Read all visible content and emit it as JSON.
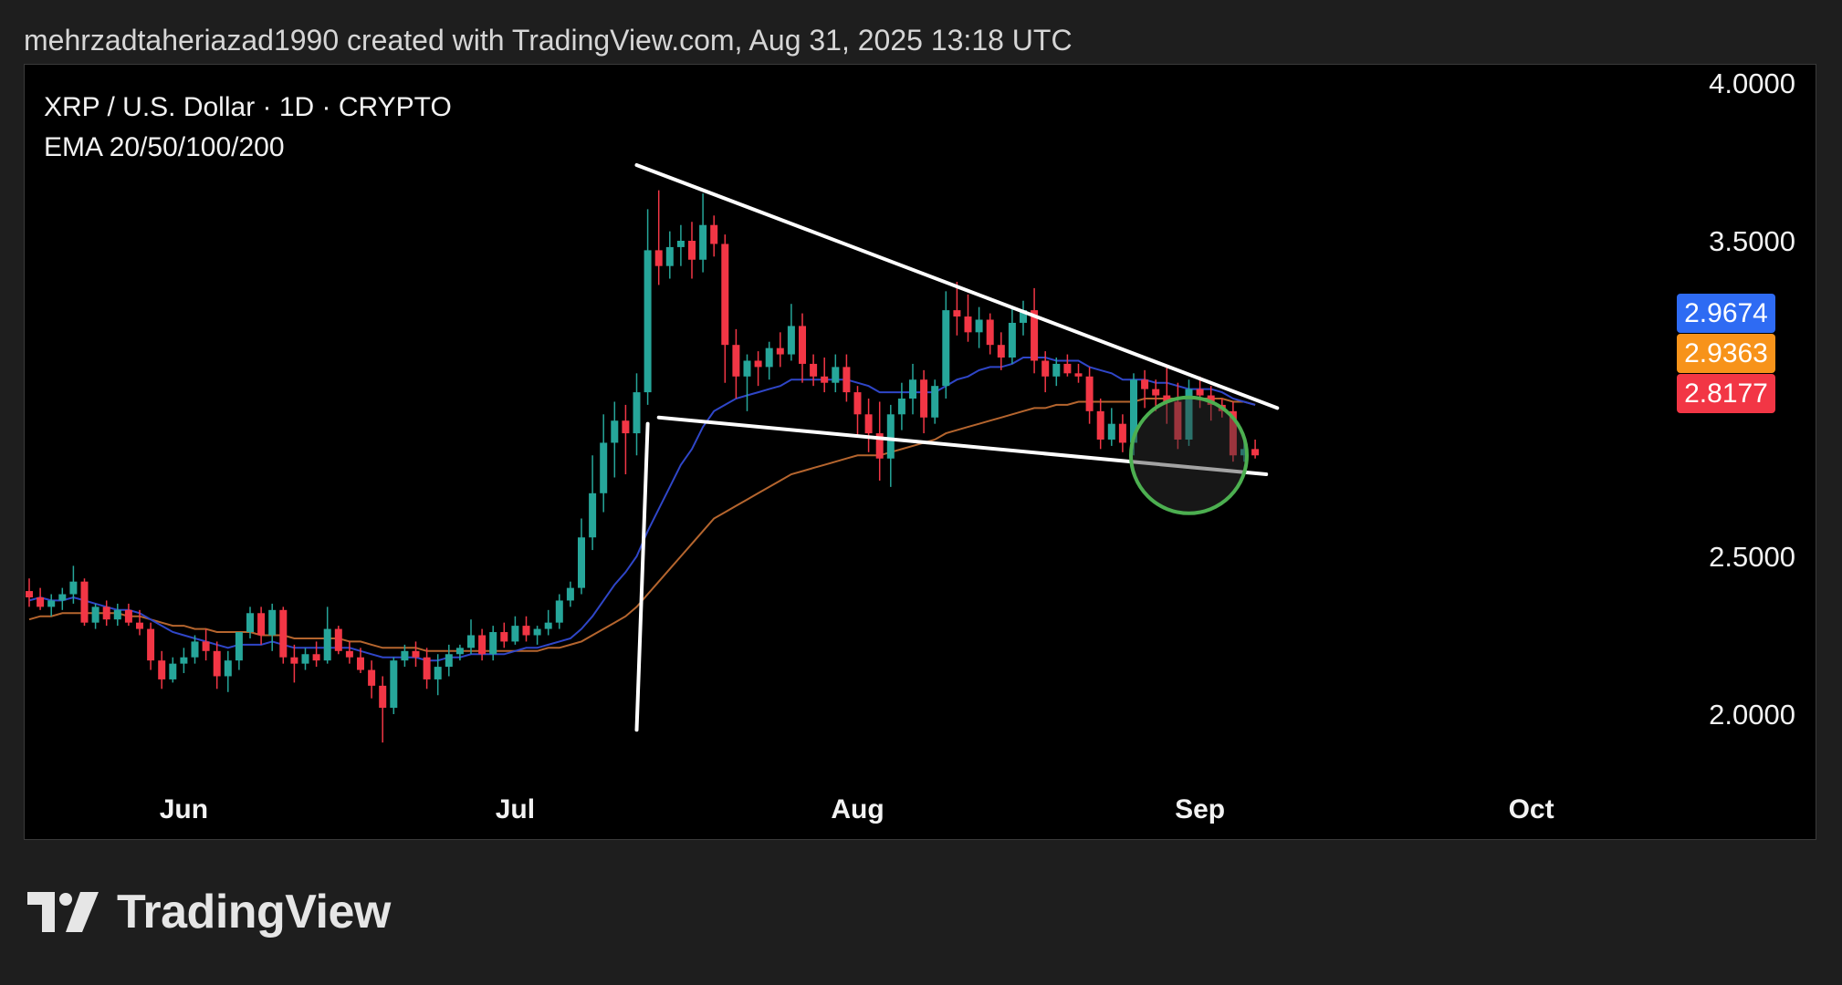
{
  "header": {
    "credit": "mehrzadtaheriazad1990 created with TradingView.com, Aug 31, 2025 13:18 UTC"
  },
  "legend": {
    "symbol": "XRP / U.S. Dollar · 1D · CRYPTO",
    "indicator": "EMA 20/50/100/200"
  },
  "price_badges": [
    {
      "value": "2.9674",
      "color": "#2e6bf3"
    },
    {
      "value": "2.9363",
      "color": "#f7931a"
    },
    {
      "value": "2.8177",
      "color": "#f23645"
    }
  ],
  "footer": {
    "brand": "TradingView"
  },
  "colors": {
    "up": "#26a69a",
    "down": "#f23645",
    "ema20": "#2f46c8",
    "ema50": "#b5652e",
    "drawing": "#ffffff",
    "circle": "#4caf50"
  },
  "chart_data": {
    "type": "candlestick",
    "title": "XRP / U.S. Dollar · 1D · CRYPTO",
    "x_ticks": [
      "Jun",
      "Jul",
      "Aug",
      "Sep",
      "Oct"
    ],
    "y_ticks": [
      "4.0000",
      "3.5000",
      "2.5000",
      "2.0000"
    ],
    "ylim": [
      1.6,
      4.06
    ],
    "grid": false,
    "x_start": "2025-05-18",
    "candles": [
      [
        2.39,
        2.43,
        2.34,
        2.37
      ],
      [
        2.37,
        2.4,
        2.33,
        2.34
      ],
      [
        2.34,
        2.38,
        2.31,
        2.36
      ],
      [
        2.36,
        2.4,
        2.33,
        2.38
      ],
      [
        2.38,
        2.47,
        2.35,
        2.42
      ],
      [
        2.42,
        2.43,
        2.28,
        2.29
      ],
      [
        2.29,
        2.35,
        2.27,
        2.34
      ],
      [
        2.34,
        2.36,
        2.28,
        2.3
      ],
      [
        2.3,
        2.35,
        2.28,
        2.33
      ],
      [
        2.33,
        2.35,
        2.28,
        2.29
      ],
      [
        2.29,
        2.33,
        2.25,
        2.27
      ],
      [
        2.27,
        2.29,
        2.14,
        2.17
      ],
      [
        2.17,
        2.2,
        2.08,
        2.11
      ],
      [
        2.11,
        2.18,
        2.1,
        2.16
      ],
      [
        2.16,
        2.21,
        2.13,
        2.18
      ],
      [
        2.18,
        2.25,
        2.16,
        2.23
      ],
      [
        2.23,
        2.27,
        2.17,
        2.2
      ],
      [
        2.2,
        2.23,
        2.08,
        2.12
      ],
      [
        2.12,
        2.2,
        2.07,
        2.17
      ],
      [
        2.17,
        2.25,
        2.14,
        2.26
      ],
      [
        2.26,
        2.34,
        2.24,
        2.32
      ],
      [
        2.32,
        2.34,
        2.22,
        2.25
      ],
      [
        2.25,
        2.35,
        2.2,
        2.33
      ],
      [
        2.33,
        2.34,
        2.16,
        2.18
      ],
      [
        2.18,
        2.22,
        2.1,
        2.16
      ],
      [
        2.16,
        2.21,
        2.14,
        2.19
      ],
      [
        2.19,
        2.23,
        2.15,
        2.17
      ],
      [
        2.17,
        2.34,
        2.16,
        2.27
      ],
      [
        2.27,
        2.28,
        2.19,
        2.2
      ],
      [
        2.2,
        2.23,
        2.16,
        2.18
      ],
      [
        2.18,
        2.21,
        2.13,
        2.14
      ],
      [
        2.14,
        2.17,
        2.05,
        2.09
      ],
      [
        2.09,
        2.12,
        1.91,
        2.02
      ],
      [
        2.02,
        2.18,
        2.0,
        2.17
      ],
      [
        2.17,
        2.22,
        2.15,
        2.2
      ],
      [
        2.2,
        2.23,
        2.15,
        2.18
      ],
      [
        2.18,
        2.21,
        2.08,
        2.11
      ],
      [
        2.11,
        2.19,
        2.06,
        2.15
      ],
      [
        2.15,
        2.22,
        2.12,
        2.19
      ],
      [
        2.19,
        2.22,
        2.17,
        2.21
      ],
      [
        2.21,
        2.3,
        2.19,
        2.25
      ],
      [
        2.25,
        2.27,
        2.17,
        2.19
      ],
      [
        2.19,
        2.28,
        2.17,
        2.26
      ],
      [
        2.26,
        2.29,
        2.21,
        2.23
      ],
      [
        2.23,
        2.31,
        2.22,
        2.28
      ],
      [
        2.28,
        2.31,
        2.23,
        2.25
      ],
      [
        2.25,
        2.28,
        2.22,
        2.27
      ],
      [
        2.27,
        2.33,
        2.25,
        2.29
      ],
      [
        2.29,
        2.38,
        2.27,
        2.36
      ],
      [
        2.36,
        2.42,
        2.34,
        2.4
      ],
      [
        2.4,
        2.62,
        2.38,
        2.56
      ],
      [
        2.56,
        2.82,
        2.52,
        2.7
      ],
      [
        2.7,
        2.95,
        2.64,
        2.86
      ],
      [
        2.86,
        2.99,
        2.75,
        2.93
      ],
      [
        2.93,
        2.98,
        2.76,
        2.89
      ],
      [
        2.89,
        3.08,
        2.82,
        3.02
      ],
      [
        3.02,
        3.6,
        2.98,
        3.47
      ],
      [
        3.47,
        3.66,
        3.36,
        3.42
      ],
      [
        3.42,
        3.53,
        3.38,
        3.48
      ],
      [
        3.48,
        3.55,
        3.42,
        3.5
      ],
      [
        3.5,
        3.56,
        3.38,
        3.44
      ],
      [
        3.44,
        3.65,
        3.4,
        3.55
      ],
      [
        3.55,
        3.58,
        3.45,
        3.49
      ],
      [
        3.49,
        3.52,
        3.05,
        3.17
      ],
      [
        3.17,
        3.22,
        3.0,
        3.07
      ],
      [
        3.07,
        3.14,
        2.96,
        3.12
      ],
      [
        3.12,
        3.15,
        3.04,
        3.1
      ],
      [
        3.1,
        3.18,
        3.06,
        3.16
      ],
      [
        3.16,
        3.21,
        3.1,
        3.14
      ],
      [
        3.14,
        3.3,
        3.12,
        3.23
      ],
      [
        3.23,
        3.27,
        3.05,
        3.11
      ],
      [
        3.11,
        3.14,
        3.04,
        3.07
      ],
      [
        3.07,
        3.13,
        3.02,
        3.05
      ],
      [
        3.05,
        3.14,
        3.02,
        3.1
      ],
      [
        3.1,
        3.14,
        2.99,
        3.02
      ],
      [
        3.02,
        3.04,
        2.88,
        2.95
      ],
      [
        2.95,
        3.0,
        2.83,
        2.89
      ],
      [
        2.89,
        2.99,
        2.74,
        2.81
      ],
      [
        2.81,
        2.98,
        2.72,
        2.95
      ],
      [
        2.95,
        3.05,
        2.9,
        3.0
      ],
      [
        3.0,
        3.11,
        2.95,
        3.06
      ],
      [
        3.06,
        3.09,
        2.89,
        2.94
      ],
      [
        2.94,
        3.06,
        2.92,
        3.04
      ],
      [
        3.04,
        3.34,
        3.0,
        3.28
      ],
      [
        3.28,
        3.37,
        3.2,
        3.26
      ],
      [
        3.26,
        3.33,
        3.18,
        3.21
      ],
      [
        3.21,
        3.29,
        3.16,
        3.25
      ],
      [
        3.25,
        3.27,
        3.14,
        3.17
      ],
      [
        3.17,
        3.21,
        3.09,
        3.13
      ],
      [
        3.13,
        3.29,
        3.11,
        3.24
      ],
      [
        3.24,
        3.31,
        3.2,
        3.28
      ],
      [
        3.28,
        3.35,
        3.08,
        3.12
      ],
      [
        3.12,
        3.15,
        3.02,
        3.07
      ],
      [
        3.07,
        3.13,
        3.04,
        3.11
      ],
      [
        3.11,
        3.14,
        3.07,
        3.08
      ],
      [
        3.08,
        3.11,
        3.05,
        3.07
      ],
      [
        3.07,
        3.1,
        2.92,
        2.96
      ],
      [
        2.96,
        3.0,
        2.84,
        2.87
      ],
      [
        2.87,
        2.97,
        2.85,
        2.92
      ],
      [
        2.92,
        2.95,
        2.83,
        2.86
      ],
      [
        2.86,
        3.08,
        2.82,
        3.06
      ],
      [
        3.06,
        3.09,
        2.97,
        3.03
      ],
      [
        3.03,
        3.06,
        2.96,
        3.01
      ],
      [
        3.01,
        3.1,
        2.92,
        2.99
      ],
      [
        2.99,
        3.05,
        2.84,
        2.87
      ],
      [
        2.87,
        3.06,
        2.85,
        3.03
      ],
      [
        3.03,
        3.07,
        2.97,
        3.01
      ],
      [
        3.01,
        3.04,
        2.93,
        2.98
      ],
      [
        2.98,
        3.0,
        2.94,
        2.96
      ],
      [
        2.96,
        2.99,
        2.8,
        2.82
      ],
      [
        2.82,
        2.88,
        2.8,
        2.84
      ],
      [
        2.84,
        2.87,
        2.81,
        2.82
      ]
    ],
    "ema20": [
      2.36,
      2.37,
      2.36,
      2.36,
      2.37,
      2.36,
      2.35,
      2.34,
      2.33,
      2.33,
      2.32,
      2.3,
      2.28,
      2.26,
      2.25,
      2.24,
      2.23,
      2.22,
      2.21,
      2.22,
      2.22,
      2.22,
      2.23,
      2.22,
      2.21,
      2.21,
      2.21,
      2.21,
      2.21,
      2.21,
      2.2,
      2.19,
      2.18,
      2.18,
      2.18,
      2.18,
      2.17,
      2.17,
      2.18,
      2.18,
      2.19,
      2.19,
      2.19,
      2.19,
      2.2,
      2.21,
      2.21,
      2.22,
      2.23,
      2.24,
      2.27,
      2.31,
      2.36,
      2.41,
      2.45,
      2.5,
      2.58,
      2.65,
      2.72,
      2.79,
      2.84,
      2.91,
      2.96,
      2.98,
      3.0,
      3.01,
      3.02,
      3.03,
      3.04,
      3.06,
      3.06,
      3.06,
      3.06,
      3.06,
      3.06,
      3.05,
      3.04,
      3.02,
      3.02,
      3.02,
      3.02,
      3.02,
      3.02,
      3.04,
      3.06,
      3.07,
      3.09,
      3.1,
      3.1,
      3.11,
      3.13,
      3.13,
      3.13,
      3.12,
      3.12,
      3.12,
      3.1,
      3.09,
      3.08,
      3.06,
      3.06,
      3.06,
      3.05,
      3.05,
      3.04,
      3.03,
      3.03,
      3.03,
      3.02,
      3.0,
      2.99,
      2.98
    ],
    "ema50": [
      2.3,
      2.31,
      2.31,
      2.32,
      2.32,
      2.32,
      2.32,
      2.32,
      2.32,
      2.31,
      2.31,
      2.3,
      2.29,
      2.28,
      2.28,
      2.27,
      2.27,
      2.26,
      2.26,
      2.26,
      2.26,
      2.25,
      2.25,
      2.25,
      2.24,
      2.24,
      2.24,
      2.24,
      2.24,
      2.23,
      2.23,
      2.22,
      2.21,
      2.21,
      2.21,
      2.21,
      2.2,
      2.2,
      2.2,
      2.2,
      2.2,
      2.2,
      2.2,
      2.2,
      2.2,
      2.2,
      2.2,
      2.21,
      2.21,
      2.22,
      2.23,
      2.25,
      2.27,
      2.29,
      2.31,
      2.34,
      2.38,
      2.42,
      2.46,
      2.5,
      2.54,
      2.58,
      2.62,
      2.64,
      2.66,
      2.68,
      2.7,
      2.72,
      2.74,
      2.76,
      2.77,
      2.78,
      2.79,
      2.8,
      2.81,
      2.82,
      2.82,
      2.82,
      2.83,
      2.84,
      2.85,
      2.86,
      2.87,
      2.89,
      2.9,
      2.91,
      2.92,
      2.93,
      2.94,
      2.95,
      2.96,
      2.97,
      2.97,
      2.98,
      2.98,
      2.99,
      2.99,
      2.99,
      2.99,
      2.99,
      2.99,
      3.0,
      3.0,
      3.0,
      3.0,
      3.0,
      3.0,
      3.0,
      3.0,
      2.99,
      2.99,
      2.98
    ],
    "trendlines": [
      {
        "from": [
          "2025-07-12",
          3.74
        ],
        "to": [
          "2025-09-08",
          2.97
        ]
      },
      {
        "from": [
          "2025-07-14",
          2.94
        ],
        "to": [
          "2025-09-07",
          2.76
        ]
      },
      {
        "from": [
          "2025-07-12",
          1.95
        ],
        "to": [
          "2025-07-13",
          2.92
        ]
      }
    ],
    "highlight_circle": {
      "center": [
        "2025-08-31",
        2.82
      ],
      "radius_days": 3.5
    }
  }
}
